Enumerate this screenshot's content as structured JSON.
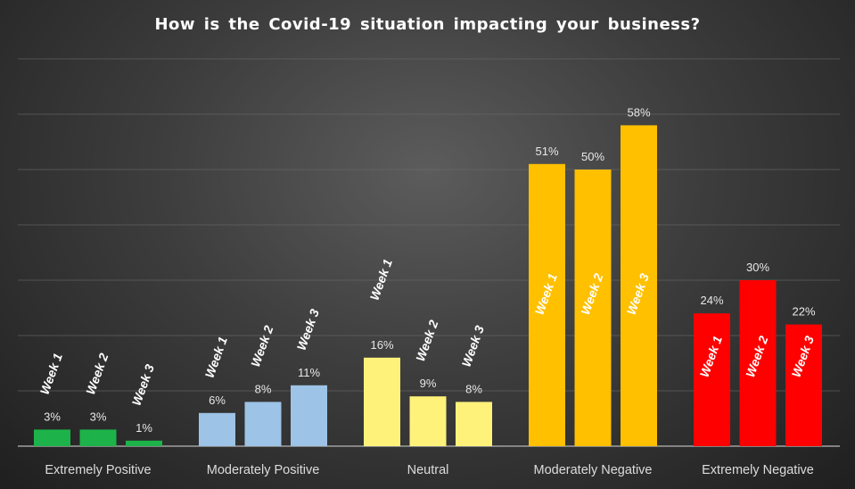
{
  "chart_data": {
    "type": "bar",
    "title": "How is the Covid-19 situation impacting your business?",
    "categories": [
      "Extremely Positive",
      "Moderately Positive",
      "Neutral",
      "Moderately Negative",
      "Extremely Negative"
    ],
    "series": [
      {
        "name": "Week 1",
        "values": [
          3,
          6,
          16,
          51,
          24
        ]
      },
      {
        "name": "Week 2",
        "values": [
          3,
          8,
          9,
          50,
          30
        ]
      },
      {
        "name": "Week 3",
        "values": [
          1,
          11,
          8,
          58,
          22
        ]
      }
    ],
    "data_labels": [
      [
        "3%",
        "3%",
        "1%"
      ],
      [
        "6%",
        "8%",
        "11%"
      ],
      [
        "16%",
        "9%",
        "8%"
      ],
      [
        "51%",
        "50%",
        "58%"
      ],
      [
        "24%",
        "30%",
        "22%"
      ]
    ],
    "category_colors": [
      "#1db34a",
      "#9dc3e6",
      "#fff27a",
      "#ffc000",
      "#ff0000"
    ],
    "ylim": [
      0,
      70
    ],
    "grid": true,
    "y_axis_labels": false,
    "legend": "none (series names drawn rotated on each bar)"
  }
}
